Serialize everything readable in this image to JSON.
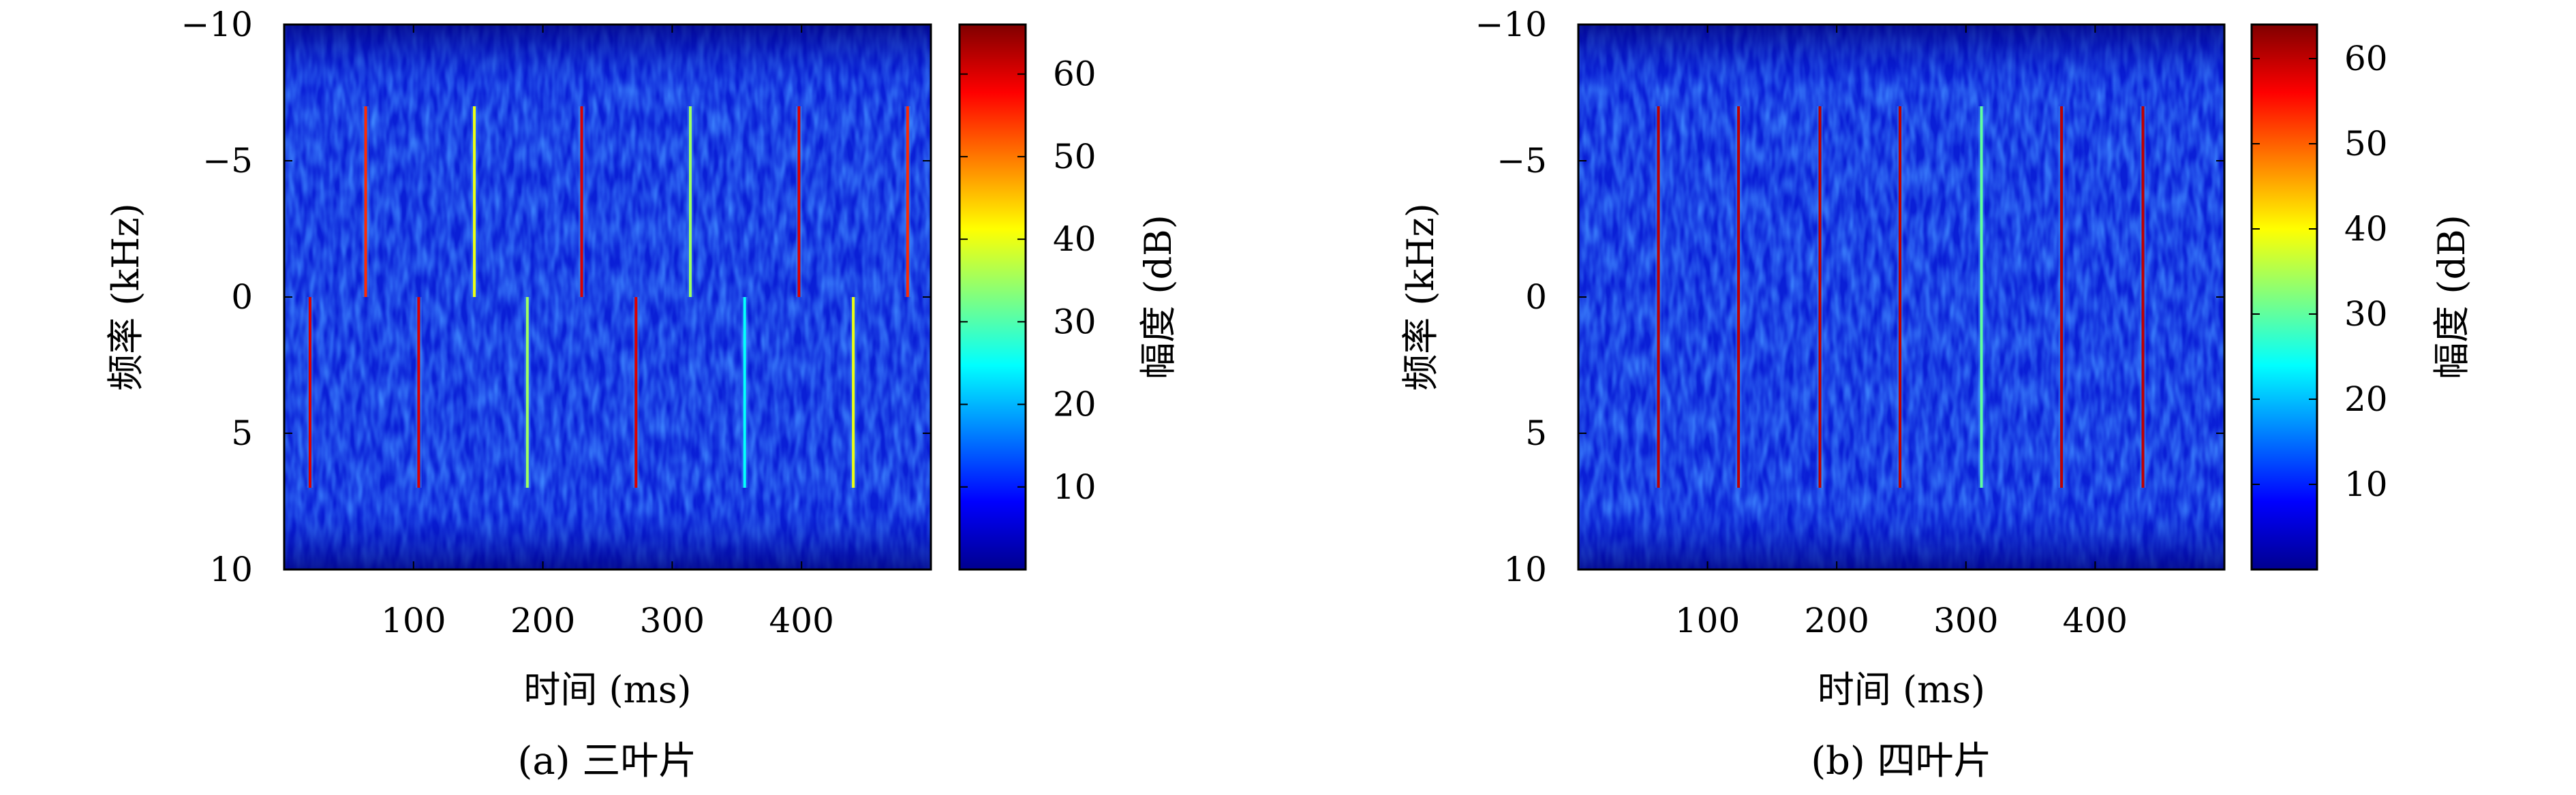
{
  "chart_data": [
    {
      "type": "heatmap",
      "caption": "(a) 三叶片",
      "xlabel": "时间 (ms)",
      "ylabel": "频率 (kHz)",
      "xlim": [
        0,
        500
      ],
      "ylim": [
        -10,
        10
      ],
      "y_reversed": true,
      "xticks": [
        100,
        200,
        300,
        400
      ],
      "yticks": [
        -10,
        -5,
        0,
        5,
        10
      ],
      "colorbar": {
        "label": "幅度 (dB)",
        "range": [
          0,
          66
        ],
        "ticks": [
          10,
          20,
          30,
          40,
          50,
          60
        ]
      },
      "flashes": [
        {
          "x": 20,
          "y_from": 0,
          "y_to": 7,
          "peak_db": 60
        },
        {
          "x": 63,
          "y_from": -7,
          "y_to": 0,
          "peak_db": 55
        },
        {
          "x": 104,
          "y_from": 0,
          "y_to": 7,
          "peak_db": 60
        },
        {
          "x": 147,
          "y_from": -7,
          "y_to": 0,
          "peak_db": 40
        },
        {
          "x": 188,
          "y_from": 0,
          "y_to": 7,
          "peak_db": 35
        },
        {
          "x": 230,
          "y_from": -7,
          "y_to": 0,
          "peak_db": 60
        },
        {
          "x": 272,
          "y_from": 0,
          "y_to": 7,
          "peak_db": 60
        },
        {
          "x": 314,
          "y_from": -7,
          "y_to": 0,
          "peak_db": 35
        },
        {
          "x": 356,
          "y_from": 0,
          "y_to": 7,
          "peak_db": 25
        },
        {
          "x": 398,
          "y_from": -7,
          "y_to": 0,
          "peak_db": 60
        },
        {
          "x": 440,
          "y_from": 0,
          "y_to": 7,
          "peak_db": 40
        },
        {
          "x": 482,
          "y_from": -7,
          "y_to": 0,
          "peak_db": 55
        }
      ],
      "background_db": 3
    },
    {
      "type": "heatmap",
      "caption": "(b) 四叶片",
      "xlabel": "时间 (ms)",
      "ylabel": "频率 (kHz)",
      "xlim": [
        0,
        500
      ],
      "ylim": [
        -10,
        10
      ],
      "y_reversed": true,
      "xticks": [
        100,
        200,
        300,
        400
      ],
      "yticks": [
        -10,
        -5,
        0,
        5,
        10
      ],
      "colorbar": {
        "label": "幅度 (dB)",
        "range": [
          0,
          64
        ],
        "ticks": [
          10,
          20,
          30,
          40,
          50,
          60
        ]
      },
      "flashes": [
        {
          "x": 62,
          "y_from": -7,
          "y_to": 7,
          "peak_db": 60
        },
        {
          "x": 124,
          "y_from": -7,
          "y_to": 7,
          "peak_db": 60
        },
        {
          "x": 187,
          "y_from": -7,
          "y_to": 7,
          "peak_db": 60
        },
        {
          "x": 249,
          "y_from": -7,
          "y_to": 7,
          "peak_db": 60
        },
        {
          "x": 312,
          "y_from": -7,
          "y_to": 7,
          "peak_db": 30
        },
        {
          "x": 374,
          "y_from": -7,
          "y_to": 7,
          "peak_db": 60
        },
        {
          "x": 437,
          "y_from": -7,
          "y_to": 7,
          "peak_db": 60
        }
      ],
      "background_db": 3
    }
  ]
}
